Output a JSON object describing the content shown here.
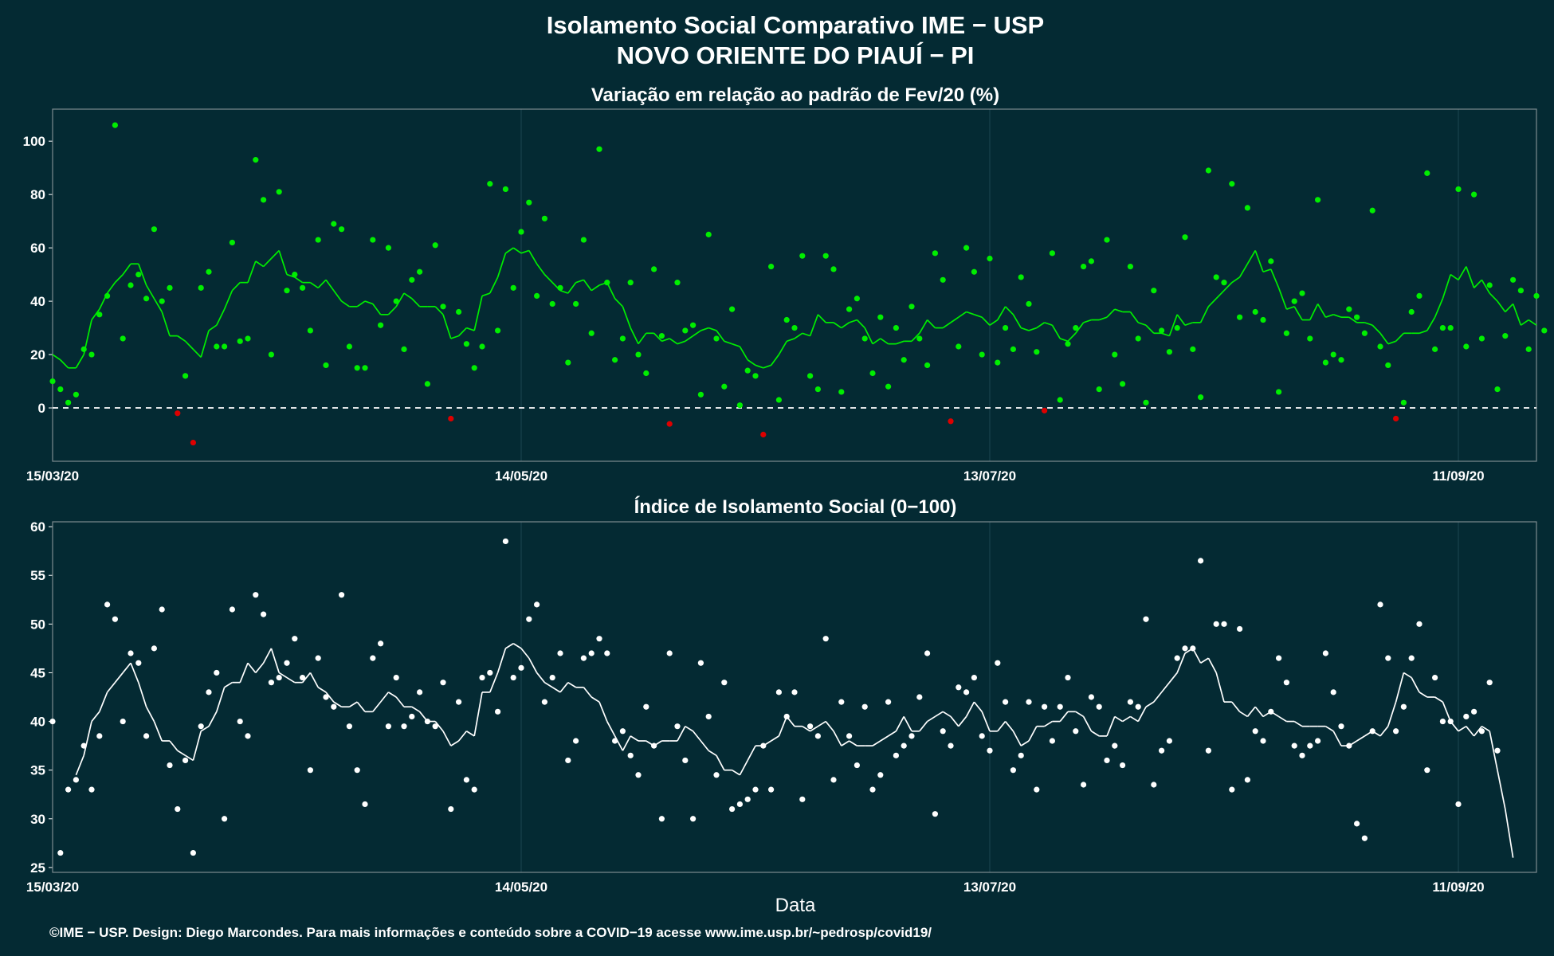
{
  "header": {
    "title_line1": "Isolamento Social Comparativo IME − USP",
    "title_line2": "NOVO ORIENTE DO PIAUÍ − PI"
  },
  "footer": {
    "credit": "©IME − USP. Design: Diego Marcondes. Para mais informações e conteúdo sobre a COVID−19 acesse www.ime.usp.br/~pedrosp/covid19/"
  },
  "colors": {
    "background": "#042a33",
    "positive": "#00ee00",
    "negative": "#dd0000",
    "index": "#ffffff",
    "frame": "#7d8a8f",
    "grid": "#1d4650"
  },
  "chart_data": [
    {
      "type": "scatter",
      "title": "Variação em relação ao padrão de Fev/20 (%)",
      "xlabel": "",
      "ylabel": "",
      "x_start": "15/03/20",
      "x_ticks": [
        {
          "day": 0,
          "label": "15/03/20"
        },
        {
          "day": 60,
          "label": "14/05/20"
        },
        {
          "day": 120,
          "label": "13/07/20"
        },
        {
          "day": 180,
          "label": "11/09/20"
        }
      ],
      "xlim": [
        0,
        190
      ],
      "ylim": [
        -20,
        112
      ],
      "y_ticks": [
        0,
        20,
        40,
        60,
        80,
        100
      ],
      "reference_line": 0,
      "grid": true,
      "series": [
        {
          "role": "daily_values",
          "values": [
            10,
            7,
            2,
            5,
            22,
            20,
            35,
            42,
            106,
            26,
            46,
            50,
            41,
            67,
            40,
            45,
            -2,
            12,
            -13,
            45,
            51,
            23,
            23,
            62,
            25,
            26,
            93,
            78,
            20,
            81,
            44,
            50,
            45,
            29,
            63,
            16,
            69,
            67,
            23,
            15,
            15,
            63,
            31,
            60,
            40,
            22,
            48,
            51,
            9,
            61,
            38,
            -4,
            36,
            24,
            15,
            23,
            84,
            29,
            82,
            45,
            66,
            77,
            42,
            71,
            39,
            45,
            17,
            39,
            63,
            28,
            97,
            47,
            18,
            26,
            47,
            20,
            13,
            52,
            27,
            -6,
            47,
            29,
            31,
            5,
            65,
            26,
            8,
            37,
            1,
            14,
            12,
            -10,
            53,
            3,
            33,
            30,
            57,
            12,
            7,
            57,
            52,
            6,
            37,
            41,
            26,
            13,
            34,
            8,
            30,
            18,
            38,
            26,
            16,
            58,
            48,
            -5,
            23,
            60,
            51,
            20,
            56,
            17,
            30,
            22,
            49,
            39,
            21,
            -1,
            58,
            3,
            24,
            30,
            53,
            55,
            7,
            63,
            20,
            9,
            53,
            26,
            2,
            44,
            29,
            21,
            30,
            64,
            22,
            4,
            89,
            49,
            47,
            84,
            34,
            75,
            36,
            33,
            55,
            6,
            28,
            40,
            43,
            26,
            78,
            17,
            20,
            18,
            37,
            34,
            28,
            74,
            23,
            16,
            -4,
            2,
            36,
            42,
            88,
            22,
            30,
            30,
            82,
            23,
            80,
            26,
            46,
            7,
            27,
            48,
            44,
            22,
            42,
            29
          ]
        },
        {
          "role": "moving_average",
          "values": [
            20,
            18,
            15,
            15,
            20,
            33,
            37,
            43,
            47,
            50,
            54,
            54,
            46,
            41,
            36,
            27,
            27,
            25,
            22,
            19,
            29,
            31,
            37,
            44,
            47,
            47,
            55,
            53,
            56,
            59,
            50,
            49,
            47,
            47,
            45,
            48,
            44,
            40,
            38,
            38,
            40,
            39,
            35,
            35,
            38,
            43,
            41,
            38,
            38,
            38,
            35,
            26,
            27,
            30,
            29,
            42,
            43,
            49,
            58,
            60,
            58,
            59,
            54,
            50,
            47,
            44,
            43,
            47,
            48,
            44,
            46,
            47,
            41,
            38,
            30,
            24,
            28,
            28,
            25,
            26,
            24,
            25,
            27,
            29,
            30,
            29,
            25,
            24,
            23,
            18,
            16,
            15,
            16,
            20,
            25,
            26,
            28,
            27,
            35,
            32,
            32,
            30,
            32,
            33,
            30,
            24,
            26,
            24,
            24,
            25,
            25,
            28,
            33,
            30,
            30,
            32,
            34,
            36,
            35,
            34,
            31,
            33,
            38,
            35,
            30,
            29,
            30,
            32,
            31,
            26,
            25,
            28,
            32,
            33,
            33,
            34,
            37,
            36,
            36,
            32,
            31,
            28,
            28,
            27,
            35,
            31,
            32,
            32,
            38,
            41,
            44,
            47,
            49,
            54,
            59,
            51,
            52,
            45,
            37,
            38,
            33,
            33,
            39,
            34,
            35,
            34,
            34,
            32,
            32,
            31,
            28,
            24,
            25,
            28,
            28,
            28,
            29,
            34,
            41,
            50,
            48,
            53,
            45,
            48,
            43,
            40,
            36,
            39,
            31,
            33,
            31
          ]
        }
      ]
    },
    {
      "type": "scatter",
      "title": "Índice de Isolamento Social (0−100)",
      "xlabel": "Data",
      "ylabel": "",
      "x_start": "15/03/20",
      "x_ticks": [
        {
          "day": 0,
          "label": "15/03/20"
        },
        {
          "day": 60,
          "label": "14/05/20"
        },
        {
          "day": 120,
          "label": "13/07/20"
        },
        {
          "day": 180,
          "label": "11/09/20"
        }
      ],
      "xlim": [
        0,
        190
      ],
      "ylim": [
        24.5,
        60.5
      ],
      "y_ticks": [
        25,
        30,
        35,
        40,
        45,
        50,
        55,
        60
      ],
      "grid": true,
      "series": [
        {
          "role": "daily_values",
          "values": [
            40,
            26.5,
            33,
            34,
            37.5,
            33,
            38.5,
            52,
            50.5,
            40,
            47,
            46,
            38.5,
            47.5,
            51.5,
            35.5,
            31,
            36,
            26.5,
            39.5,
            43,
            45,
            30,
            51.5,
            40,
            38.5,
            53,
            51,
            44,
            44.5,
            46,
            48.5,
            44.5,
            35,
            46.5,
            42.5,
            41.5,
            53,
            39.5,
            35,
            31.5,
            46.5,
            48,
            39.5,
            44.5,
            39.5,
            40.5,
            43,
            40,
            39.5,
            44,
            31,
            42,
            34,
            33,
            44.5,
            45,
            41,
            58.5,
            44.5,
            45.5,
            50.5,
            52,
            42,
            44.5,
            47,
            36,
            38,
            46.5,
            47,
            48.5,
            47,
            38,
            39,
            36.5,
            34.5,
            41.5,
            37.5,
            30,
            47,
            39.5,
            36,
            30,
            46,
            40.5,
            34.5,
            44,
            31,
            31.5,
            32,
            33,
            37.5,
            33,
            43,
            40.5,
            43,
            32,
            39.5,
            38.5,
            48.5,
            34,
            42,
            38.5,
            35.5,
            41.5,
            33,
            34.5,
            42,
            36.5,
            37.5,
            38.5,
            42.5,
            47,
            30.5,
            39,
            37.5,
            43.5,
            43,
            44.5,
            38.5,
            37,
            46,
            42,
            35,
            36.5,
            42,
            33,
            41.5,
            38,
            41.5,
            44.5,
            39,
            33.5,
            42.5,
            41.5,
            36,
            37.5,
            35.5,
            42,
            41.5,
            50.5,
            33.5,
            37,
            38,
            46.5,
            47.5,
            47.5,
            56.5,
            37,
            50,
            50,
            33,
            49.5,
            34,
            39,
            38,
            41,
            46.5,
            44,
            37.5,
            36.5,
            37.5,
            38,
            47,
            43,
            39.5,
            37.5,
            29.5,
            28,
            39,
            52,
            46.5,
            39,
            41.5,
            46.5,
            50,
            35,
            44.5,
            40,
            40,
            31.5,
            40.5,
            41,
            39,
            44,
            37
          ]
        },
        {
          "role": "moving_average",
          "values": [
            null,
            null,
            null,
            34.5,
            36.5,
            40,
            41,
            43,
            44,
            45,
            46,
            44,
            41.5,
            40,
            38,
            38,
            37,
            36.5,
            36,
            39,
            39.5,
            41,
            43.5,
            44,
            44,
            46,
            45,
            46,
            47.5,
            45,
            44.5,
            44,
            44,
            45,
            43.5,
            43,
            42,
            41.5,
            41.5,
            42,
            41,
            41,
            42,
            43,
            42.5,
            41.5,
            41.5,
            41,
            40,
            40,
            39,
            37.5,
            38,
            39,
            38.5,
            43,
            43,
            45,
            47.5,
            48,
            47.5,
            46.5,
            45,
            44,
            43.5,
            43,
            44,
            43.5,
            43.5,
            42.5,
            42,
            40,
            38.5,
            37,
            38.5,
            38,
            38,
            37.5,
            38,
            38,
            38,
            39.5,
            39,
            38,
            37,
            36.5,
            35,
            35,
            34.5,
            36,
            37.5,
            37.5,
            38,
            38.5,
            40.5,
            39.5,
            39.5,
            39,
            39.5,
            40,
            39,
            37.5,
            38,
            37.5,
            37.5,
            37.5,
            38,
            38.5,
            39,
            40.5,
            39,
            39,
            40,
            40.5,
            41,
            40.5,
            39.5,
            40.5,
            42,
            41,
            39,
            39,
            40,
            39,
            37.5,
            38,
            39.5,
            39.5,
            40,
            40,
            41,
            41,
            40.5,
            39,
            38.5,
            38.5,
            40.5,
            40,
            40.5,
            40,
            41.5,
            42,
            43,
            44,
            45,
            47,
            47.5,
            46,
            46.5,
            45,
            42,
            42,
            41,
            40.5,
            41.5,
            40.5,
            41,
            40.5,
            40,
            40,
            39.5,
            39.5,
            39.5,
            39.5,
            39,
            37.5,
            37.5,
            38,
            38.5,
            39,
            38.5,
            39.5,
            42,
            45,
            44.5,
            43,
            42.5,
            42.5,
            42,
            40,
            39,
            39.5,
            38.5,
            39.5,
            39,
            35,
            31,
            26
          ]
        }
      ]
    }
  ]
}
